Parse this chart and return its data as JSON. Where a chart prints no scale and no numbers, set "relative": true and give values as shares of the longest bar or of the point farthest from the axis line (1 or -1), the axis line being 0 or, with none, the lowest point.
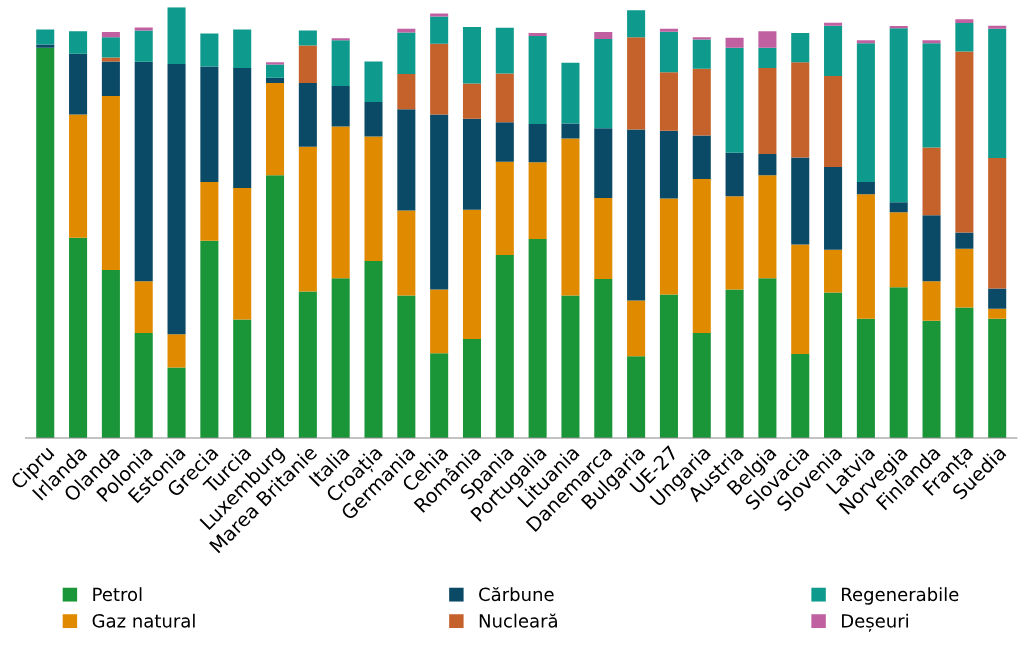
{
  "chart_data": {
    "type": "bar",
    "stacked": true,
    "relative": true,
    "legend": "bottom",
    "grid": false,
    "categories": [
      "Cipru",
      "Irlanda",
      "Olanda",
      "Polonia",
      "Estonia",
      "Grecia",
      "Turcia",
      "Luxemburg",
      "Marea Britanie",
      "Italia",
      "Croația",
      "Germania",
      "Cehia",
      "România",
      "Spania",
      "Portugalia",
      "Lituania",
      "Danemarca",
      "Bulgaria",
      "UE-27",
      "Ungaria",
      "Austria",
      "Belgia",
      "Slovacia",
      "Slovenia",
      "Latvia",
      "Norvegia",
      "Finlanda",
      "Franța",
      "Suedia"
    ],
    "series": [
      {
        "name": "Petrol",
        "color": "#1a9639",
        "values": [
          0.906,
          0.465,
          0.39,
          0.244,
          0.164,
          0.458,
          0.275,
          0.61,
          0.34,
          0.371,
          0.411,
          0.331,
          0.197,
          0.23,
          0.425,
          0.462,
          0.331,
          0.369,
          0.19,
          0.333,
          0.244,
          0.345,
          0.371,
          0.195,
          0.338,
          0.277,
          0.35,
          0.272,
          0.303,
          0.277
        ]
      },
      {
        "name": "Gaz natural",
        "color": "#e08a00",
        "values": [
          0,
          0.286,
          0.404,
          0.12,
          0.077,
          0.136,
          0.305,
          0.214,
          0.336,
          0.352,
          0.289,
          0.197,
          0.148,
          0.3,
          0.216,
          0.178,
          0.364,
          0.188,
          0.129,
          0.223,
          0.357,
          0.216,
          0.239,
          0.254,
          0.099,
          0.289,
          0.174,
          0.092,
          0.136,
          0.023
        ]
      },
      {
        "name": "Cărbune",
        "color": "#0b4a66",
        "values": [
          0.007,
          0.141,
          0.08,
          0.509,
          0.627,
          0.268,
          0.279,
          0.012,
          0.148,
          0.094,
          0.08,
          0.235,
          0.406,
          0.211,
          0.092,
          0.089,
          0.035,
          0.162,
          0.397,
          0.157,
          0.101,
          0.101,
          0.049,
          0.202,
          0.192,
          0.028,
          0.023,
          0.153,
          0.038,
          0.047
        ]
      },
      {
        "name": "Nucleară",
        "color": "#c5622c",
        "values": [
          0,
          0,
          0.009,
          0,
          0,
          0,
          0,
          0,
          0.087,
          0,
          0,
          0.082,
          0.164,
          0.082,
          0.113,
          0,
          0,
          0,
          0.214,
          0.136,
          0.155,
          0,
          0.2,
          0.221,
          0.211,
          0,
          0,
          0.157,
          0.42,
          0.303
        ]
      },
      {
        "name": "Regenerabile",
        "color": "#0e9a8c",
        "values": [
          0.035,
          0.052,
          0.047,
          0.073,
          0.132,
          0.077,
          0.089,
          0.031,
          0.035,
          0.106,
          0.094,
          0.096,
          0.063,
          0.131,
          0.106,
          0.204,
          0.141,
          0.207,
          0.063,
          0.094,
          0.068,
          0.244,
          0.047,
          0.068,
          0.117,
          0.322,
          0.404,
          0.242,
          0.066,
          0.3
        ]
      },
      {
        "name": "Deșeuri",
        "color": "#c060a0",
        "values": [
          0,
          0,
          0.012,
          0.007,
          0,
          0,
          0,
          0.005,
          0,
          0.005,
          0,
          0.009,
          0.007,
          0,
          0,
          0.007,
          0,
          0.016,
          0,
          0.007,
          0.005,
          0.023,
          0.038,
          0,
          0.007,
          0.007,
          0.005,
          0.007,
          0.009,
          0.007
        ]
      }
    ]
  }
}
